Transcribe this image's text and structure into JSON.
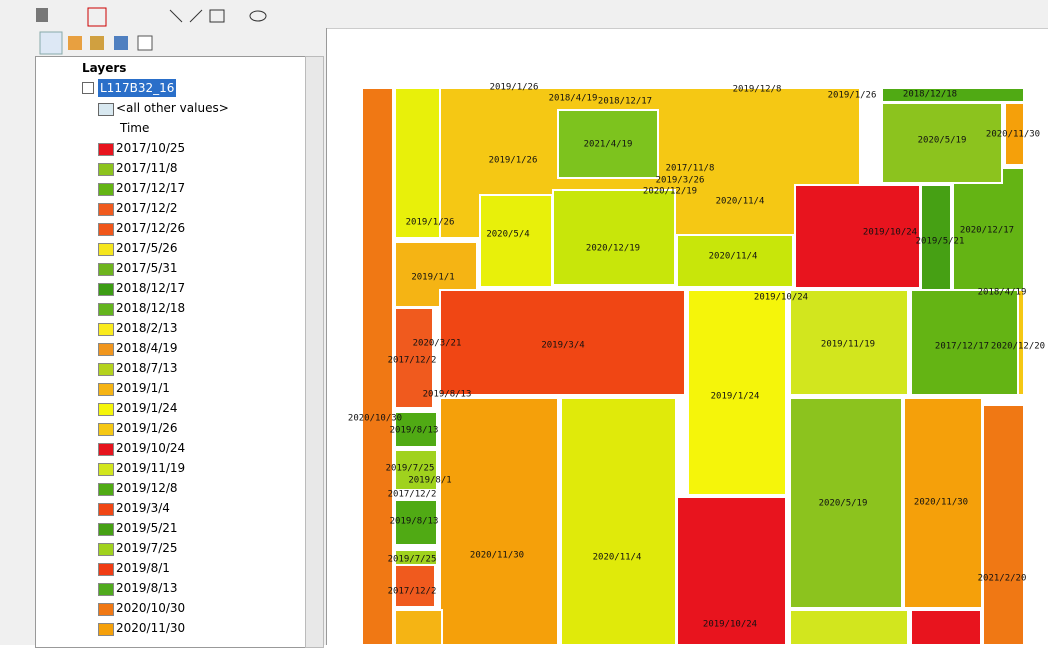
{
  "toc": {
    "root": "Layers",
    "layer": "L117B32_16",
    "other": "<all other values>",
    "field": "Time",
    "legend": [
      {
        "label": "2017/10/25",
        "color": "#e8141e"
      },
      {
        "label": "2017/11/8",
        "color": "#8cc31e"
      },
      {
        "label": "2017/12/17",
        "color": "#64b414"
      },
      {
        "label": "2017/12/2",
        "color": "#f05a1e"
      },
      {
        "label": "2017/12/26",
        "color": "#f0561a"
      },
      {
        "label": "2017/5/26",
        "color": "#f5e61e"
      },
      {
        "label": "2017/5/31",
        "color": "#6eb41e"
      },
      {
        "label": "2018/12/17",
        "color": "#3c9c14"
      },
      {
        "label": "2018/12/18",
        "color": "#64b41e"
      },
      {
        "label": "2018/2/13",
        "color": "#faeb1e"
      },
      {
        "label": "2018/4/19",
        "color": "#f0961e"
      },
      {
        "label": "2018/7/13",
        "color": "#b4d21e"
      },
      {
        "label": "2019/1/1",
        "color": "#f5b414"
      },
      {
        "label": "2019/1/24",
        "color": "#f5f50a"
      },
      {
        "label": "2019/1/26",
        "color": "#f5c814"
      },
      {
        "label": "2019/10/24",
        "color": "#e6141e"
      },
      {
        "label": "2019/11/19",
        "color": "#d2e61e"
      },
      {
        "label": "2019/12/8",
        "color": "#50aa14"
      },
      {
        "label": "2019/3/4",
        "color": "#f04614"
      },
      {
        "label": "2019/5/21",
        "color": "#46a014"
      },
      {
        "label": "2019/7/25",
        "color": "#a0d21e"
      },
      {
        "label": "2019/8/1",
        "color": "#f03c14"
      },
      {
        "label": "2019/8/13",
        "color": "#50aa1e"
      },
      {
        "label": "2020/10/30",
        "color": "#f07814"
      },
      {
        "label": "2020/11/30",
        "color": "#f5a00a"
      }
    ]
  },
  "map": {
    "regions": [
      {
        "label": "2020/10/30",
        "color": "#f07814"
      },
      {
        "label": "2019/1/26",
        "color": "#e8f00a"
      },
      {
        "label": "2019/1/26",
        "color": "#f5c814"
      },
      {
        "label": "2021/4/19",
        "color": "#7dc31e"
      },
      {
        "label": "2020/12/19",
        "color": "#c8e60a"
      },
      {
        "label": "2020/11/4",
        "color": "#c8e60a"
      },
      {
        "label": "2019/10/24",
        "color": "#e8141e"
      },
      {
        "label": "2019/5/21",
        "color": "#46a014"
      },
      {
        "label": "2020/12/17",
        "color": "#64b414"
      },
      {
        "label": "2020/5/19",
        "color": "#8cc31e"
      },
      {
        "label": "2020/11/30",
        "color": "#f5a00a"
      },
      {
        "label": "2018/12/18",
        "color": "#50aa14"
      },
      {
        "label": "2020/5/4",
        "color": "#e8f00a"
      },
      {
        "label": "2019/1/1",
        "color": "#f5b414"
      },
      {
        "label": "2017/12/2",
        "color": "#f05a1e"
      },
      {
        "label": "2019/3/4",
        "color": "#f04614"
      },
      {
        "label": "2019/1/24",
        "color": "#f5f50a"
      },
      {
        "label": "2019/11/19",
        "color": "#d2e61e"
      },
      {
        "label": "2017/12/17",
        "color": "#64b414"
      },
      {
        "label": "2020/12/20",
        "color": "#f5c814"
      },
      {
        "label": "2020/11/30",
        "color": "#f5a00a"
      },
      {
        "label": "2020/11/4",
        "color": "#e0ea0a"
      },
      {
        "label": "2019/10/24",
        "color": "#e8141e"
      },
      {
        "label": "2020/5/19",
        "color": "#8cc31e"
      },
      {
        "label": "2020/11/30",
        "color": "#f5a00a"
      },
      {
        "label": "2021/2/20",
        "color": "#f07814"
      },
      {
        "label": "2019/8/13",
        "color": "#50aa14"
      },
      {
        "label": "2019/7/25",
        "color": "#a0d21e"
      },
      {
        "label": "2019/8/13",
        "color": "#50aa14"
      },
      {
        "label": "2019/7/25",
        "color": "#a0d21e"
      },
      {
        "label": "2017/12/2",
        "color": "#f05a1e"
      }
    ],
    "labels": [
      "2019/1/26",
      "2018/4/19",
      "2018/12/17",
      "2019/12/8",
      "2019/1/26",
      "2017/11/8",
      "2019/3/26",
      "2020/12/19",
      "2020/11/4",
      "2018/4/19",
      "2019/10/24",
      "2020/3/21",
      "2019/8/13",
      "2019/8/1",
      "2017/12/2"
    ]
  }
}
